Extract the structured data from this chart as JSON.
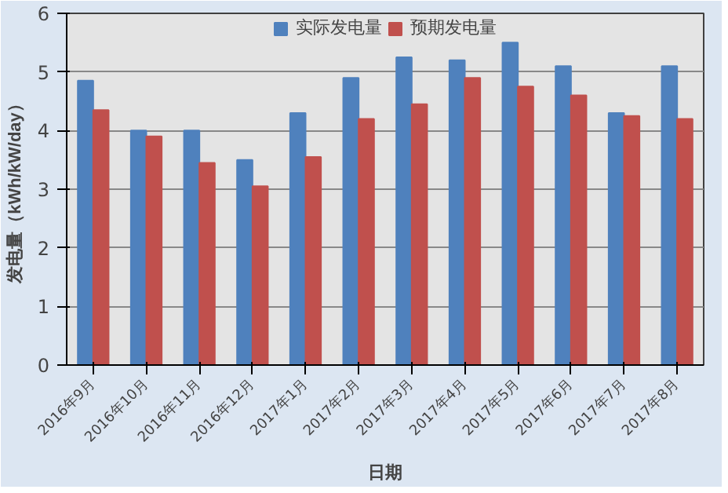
{
  "chart_data": {
    "type": "bar",
    "xlabel": "日期",
    "ylabel": "发电量（kWh/kW/day）",
    "categories": [
      "2016年9月",
      "2016年10月",
      "2016年11月",
      "2016年12月",
      "2017年1月",
      "2017年2月",
      "2017年3月",
      "2017年4月",
      "2017年5月",
      "2017年6月",
      "2017年7月",
      "2017年8月"
    ],
    "series": [
      {
        "name": "实际发电量",
        "color": "#4f81bd",
        "values": [
          4.85,
          4.0,
          4.0,
          3.5,
          4.3,
          4.9,
          5.25,
          5.2,
          5.5,
          5.1,
          4.3,
          5.1
        ]
      },
      {
        "name": "预期发电量",
        "color": "#c0504d",
        "values": [
          4.35,
          3.9,
          3.45,
          3.05,
          3.55,
          4.2,
          4.45,
          4.9,
          4.75,
          4.6,
          4.25,
          4.2
        ]
      }
    ],
    "ylim": [
      0,
      6
    ],
    "yticks": [
      0,
      1,
      2,
      3,
      4,
      5,
      6
    ],
    "grid": "y",
    "legend": "top"
  }
}
